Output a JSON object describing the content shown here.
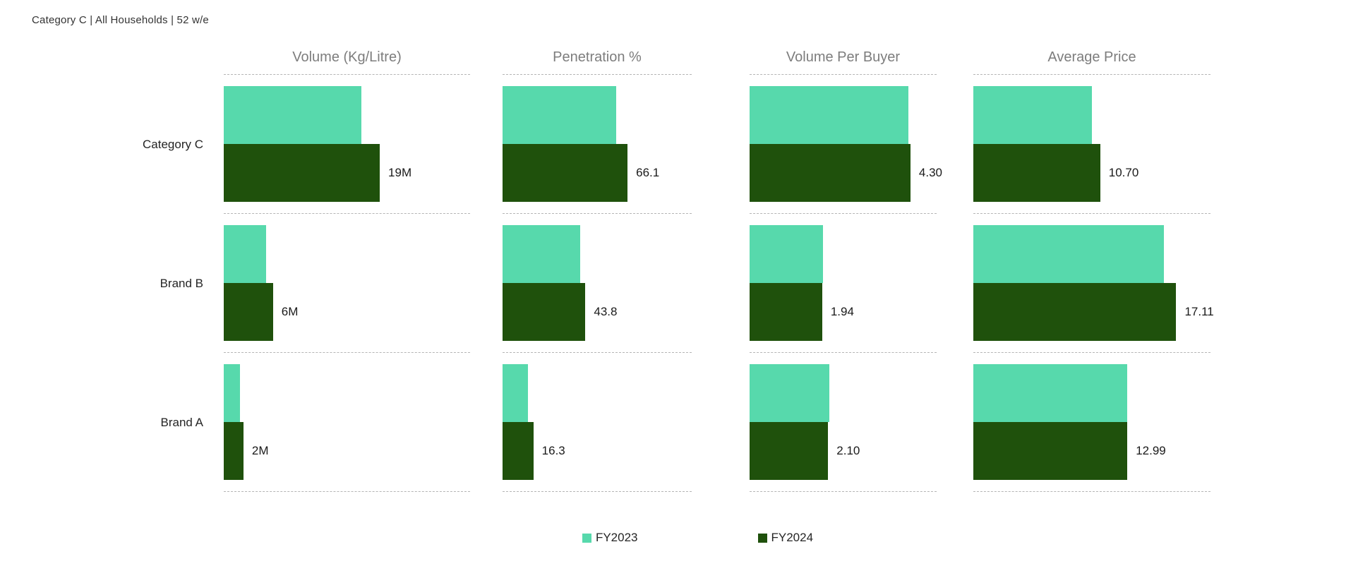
{
  "title": "Category C | All Households | 52 w/e",
  "colors": {
    "fy2023": "#57D9AC",
    "fy2024": "#1F510C",
    "header_text": "#7D7D7D",
    "label_text": "#252525",
    "grid_line": "#B5B5B5"
  },
  "legend": [
    {
      "label": "FY2023",
      "series": "fy2023"
    },
    {
      "label": "FY2024",
      "series": "fy2024"
    }
  ],
  "chart_data": {
    "type": "bar",
    "orientation": "horizontal",
    "layout": "small-multiples (4 metric panels sharing category rows)",
    "grid": "dashed horizontal row separators, no axis ticks",
    "legend_position": "bottom-center",
    "categories": [
      "Category C",
      "Brand B",
      "Brand A"
    ],
    "series_names": [
      "FY2023",
      "FY2024"
    ],
    "note": "Only FY2024 bars carry data labels; FY2023 values estimated from bar lengths",
    "panels": [
      {
        "title": "Volume (Kg/Litre)",
        "axis_max": 30,
        "fy2023_values": [
          16.8,
          5.2,
          2.0
        ],
        "fy2024_values": [
          19,
          6,
          2.4
        ],
        "fy2024_labels": [
          "19M",
          "6M",
          "2M"
        ]
      },
      {
        "title": "Penetration %",
        "axis_max": 100,
        "fy2023_values": [
          60.0,
          41.0,
          13.5
        ],
        "fy2024_values": [
          66.1,
          43.8,
          16.3
        ],
        "fy2024_labels": [
          "66.1",
          "43.8",
          "16.3"
        ]
      },
      {
        "title": "Volume Per Buyer",
        "axis_max": 5,
        "fy2023_values": [
          4.25,
          1.97,
          2.14
        ],
        "fy2024_values": [
          4.3,
          1.94,
          2.1
        ],
        "fy2024_labels": [
          "4.30",
          "1.94",
          "2.10"
        ]
      },
      {
        "title": "Average Price",
        "axis_max": 20,
        "fy2023_values": [
          10.0,
          16.1,
          13.0
        ],
        "fy2024_values": [
          10.7,
          17.11,
          12.99
        ],
        "fy2024_labels": [
          "10.70",
          "17.11",
          "12.99"
        ]
      }
    ]
  }
}
